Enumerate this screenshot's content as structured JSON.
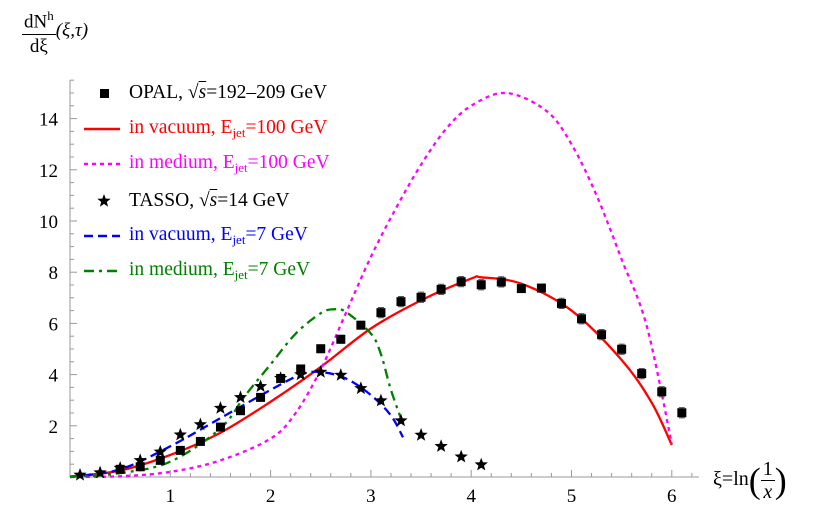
{
  "chart_data": {
    "type": "line",
    "ylabel": {
      "numerator": "dN",
      "numerator_sup": "h",
      "denominator": "dξ",
      "args": "(ξ,τ)"
    },
    "xlabel": {
      "lhs": "ξ=ln",
      "numerator": "1",
      "denominator": "x"
    },
    "xlim": [
      0,
      6.27
    ],
    "ylim": [
      0,
      15.5
    ],
    "xticks": [
      1,
      2,
      3,
      4,
      5,
      6
    ],
    "yticks": [
      2,
      4,
      6,
      8,
      10,
      12,
      14
    ],
    "grid": false,
    "legend_position": "top-left",
    "series": [
      {
        "name": "OPAL, √s=192–209 GeV",
        "legend": {
          "prefix": "OPAL, √",
          "sqrt": "s",
          "suffix": "=192–209 GeV"
        },
        "kind": "points",
        "marker": "square",
        "color": "#000000",
        "x": [
          0.5,
          0.7,
          0.9,
          1.1,
          1.3,
          1.5,
          1.7,
          1.9,
          2.1,
          2.3,
          2.5,
          2.7,
          2.9,
          3.1,
          3.3,
          3.5,
          3.7,
          3.9,
          4.1,
          4.3,
          4.5,
          4.7,
          4.9,
          5.1,
          5.3,
          5.5,
          5.7,
          5.9,
          6.1
        ],
        "y": [
          0.3,
          0.4,
          0.65,
          1.04,
          1.39,
          1.95,
          2.59,
          3.11,
          3.85,
          4.22,
          5.01,
          5.38,
          5.93,
          6.42,
          6.85,
          7.02,
          7.33,
          7.63,
          7.51,
          7.62,
          7.36,
          7.38,
          6.78,
          6.18,
          5.56,
          4.99,
          4.04,
          3.33,
          2.51
        ],
        "err": [
          0,
          0,
          0,
          0,
          0,
          0,
          0,
          0,
          0.05,
          0.05,
          0.15,
          0.15,
          0.15,
          0.2,
          0.2,
          0.2,
          0.2,
          0.2,
          0.2,
          0.2,
          0.15,
          0.15,
          0.2,
          0.2,
          0.2,
          0.2,
          0.2,
          0.2,
          0.2
        ]
      },
      {
        "name": "in vacuum, Ejet=100 GeV",
        "legend": {
          "prefix": "in vacuum, E",
          "sub": "jet",
          "suffix": "=100 GeV"
        },
        "kind": "line",
        "style": "solid",
        "color": "#ff0000",
        "x": [
          0,
          0.5,
          1,
          1.5,
          2,
          2.5,
          3,
          3.5,
          4,
          4.1,
          4.5,
          5,
          5.5,
          5.8,
          6
        ],
        "y": [
          0.02,
          0.25,
          0.86,
          1.73,
          2.94,
          4.3,
          5.8,
          6.9,
          7.75,
          7.8,
          7.55,
          6.5,
          4.57,
          2.9,
          1.25
        ]
      },
      {
        "name": "in medium, Ejet=100 GeV",
        "legend": {
          "prefix": "in medium, E",
          "sub": "jet",
          "suffix": "=100 GeV"
        },
        "kind": "line",
        "style": "dotted",
        "color": "#ff00ff",
        "x": [
          0,
          0.5,
          1,
          1.5,
          2,
          2.25,
          2.5,
          2.75,
          3,
          3.25,
          3.5,
          3.75,
          4,
          4.35,
          4.75,
          5,
          5.25,
          5.5,
          5.75,
          6
        ],
        "y": [
          0,
          0.03,
          0.2,
          0.65,
          1.5,
          2.5,
          4.2,
          6.4,
          8.6,
          10.5,
          12.2,
          13.6,
          14.5,
          15.0,
          14.3,
          13.0,
          11.0,
          8.5,
          5.9,
          1.3
        ]
      },
      {
        "name": "TASSO, √s=14 GeV",
        "legend": {
          "prefix": "TASSO, √",
          "sqrt": "s",
          "suffix": "=14 GeV"
        },
        "kind": "points",
        "marker": "star",
        "color": "#000000",
        "x": [
          0.1,
          0.3,
          0.5,
          0.7,
          0.9,
          1.1,
          1.3,
          1.5,
          1.7,
          1.9,
          2.1,
          2.3,
          2.5,
          2.7,
          2.9,
          3.1,
          3.3,
          3.5,
          3.7,
          3.9,
          4.1
        ],
        "y": [
          0.08,
          0.17,
          0.35,
          0.65,
          0.98,
          1.65,
          2.05,
          2.69,
          3.11,
          3.54,
          3.86,
          4.0,
          4.1,
          3.98,
          3.46,
          2.98,
          2.2,
          1.64,
          1.2,
          0.79,
          0.48
        ]
      },
      {
        "name": "in vacuum, Ejet=7 GeV",
        "legend": {
          "prefix": "in vacuum, E",
          "sub": "jet",
          "suffix": "=7 GeV"
        },
        "kind": "line",
        "style": "dashed",
        "color": "#0000ff",
        "x": [
          0,
          0.5,
          1,
          1.5,
          2,
          2.3,
          2.5,
          2.75,
          3,
          3.2,
          3.32
        ],
        "y": [
          0,
          0.3,
          1.2,
          2.3,
          3.4,
          4.0,
          4.1,
          3.85,
          3.2,
          2.4,
          1.55
        ]
      },
      {
        "name": "in medium, Ejet=7 GeV",
        "legend": {
          "prefix": "in medium, E",
          "sub": "jet",
          "suffix": "=7 GeV"
        },
        "kind": "line",
        "style": "dashdot",
        "color": "#008000",
        "x": [
          0,
          0.5,
          1,
          1.5,
          1.75,
          2,
          2.25,
          2.5,
          2.63,
          2.75,
          3,
          3.1,
          3.2,
          3.33
        ],
        "y": [
          0,
          0.15,
          0.6,
          1.9,
          3.2,
          4.4,
          5.6,
          6.4,
          6.55,
          6.45,
          5.6,
          4.8,
          3.4,
          1.96
        ]
      }
    ]
  }
}
